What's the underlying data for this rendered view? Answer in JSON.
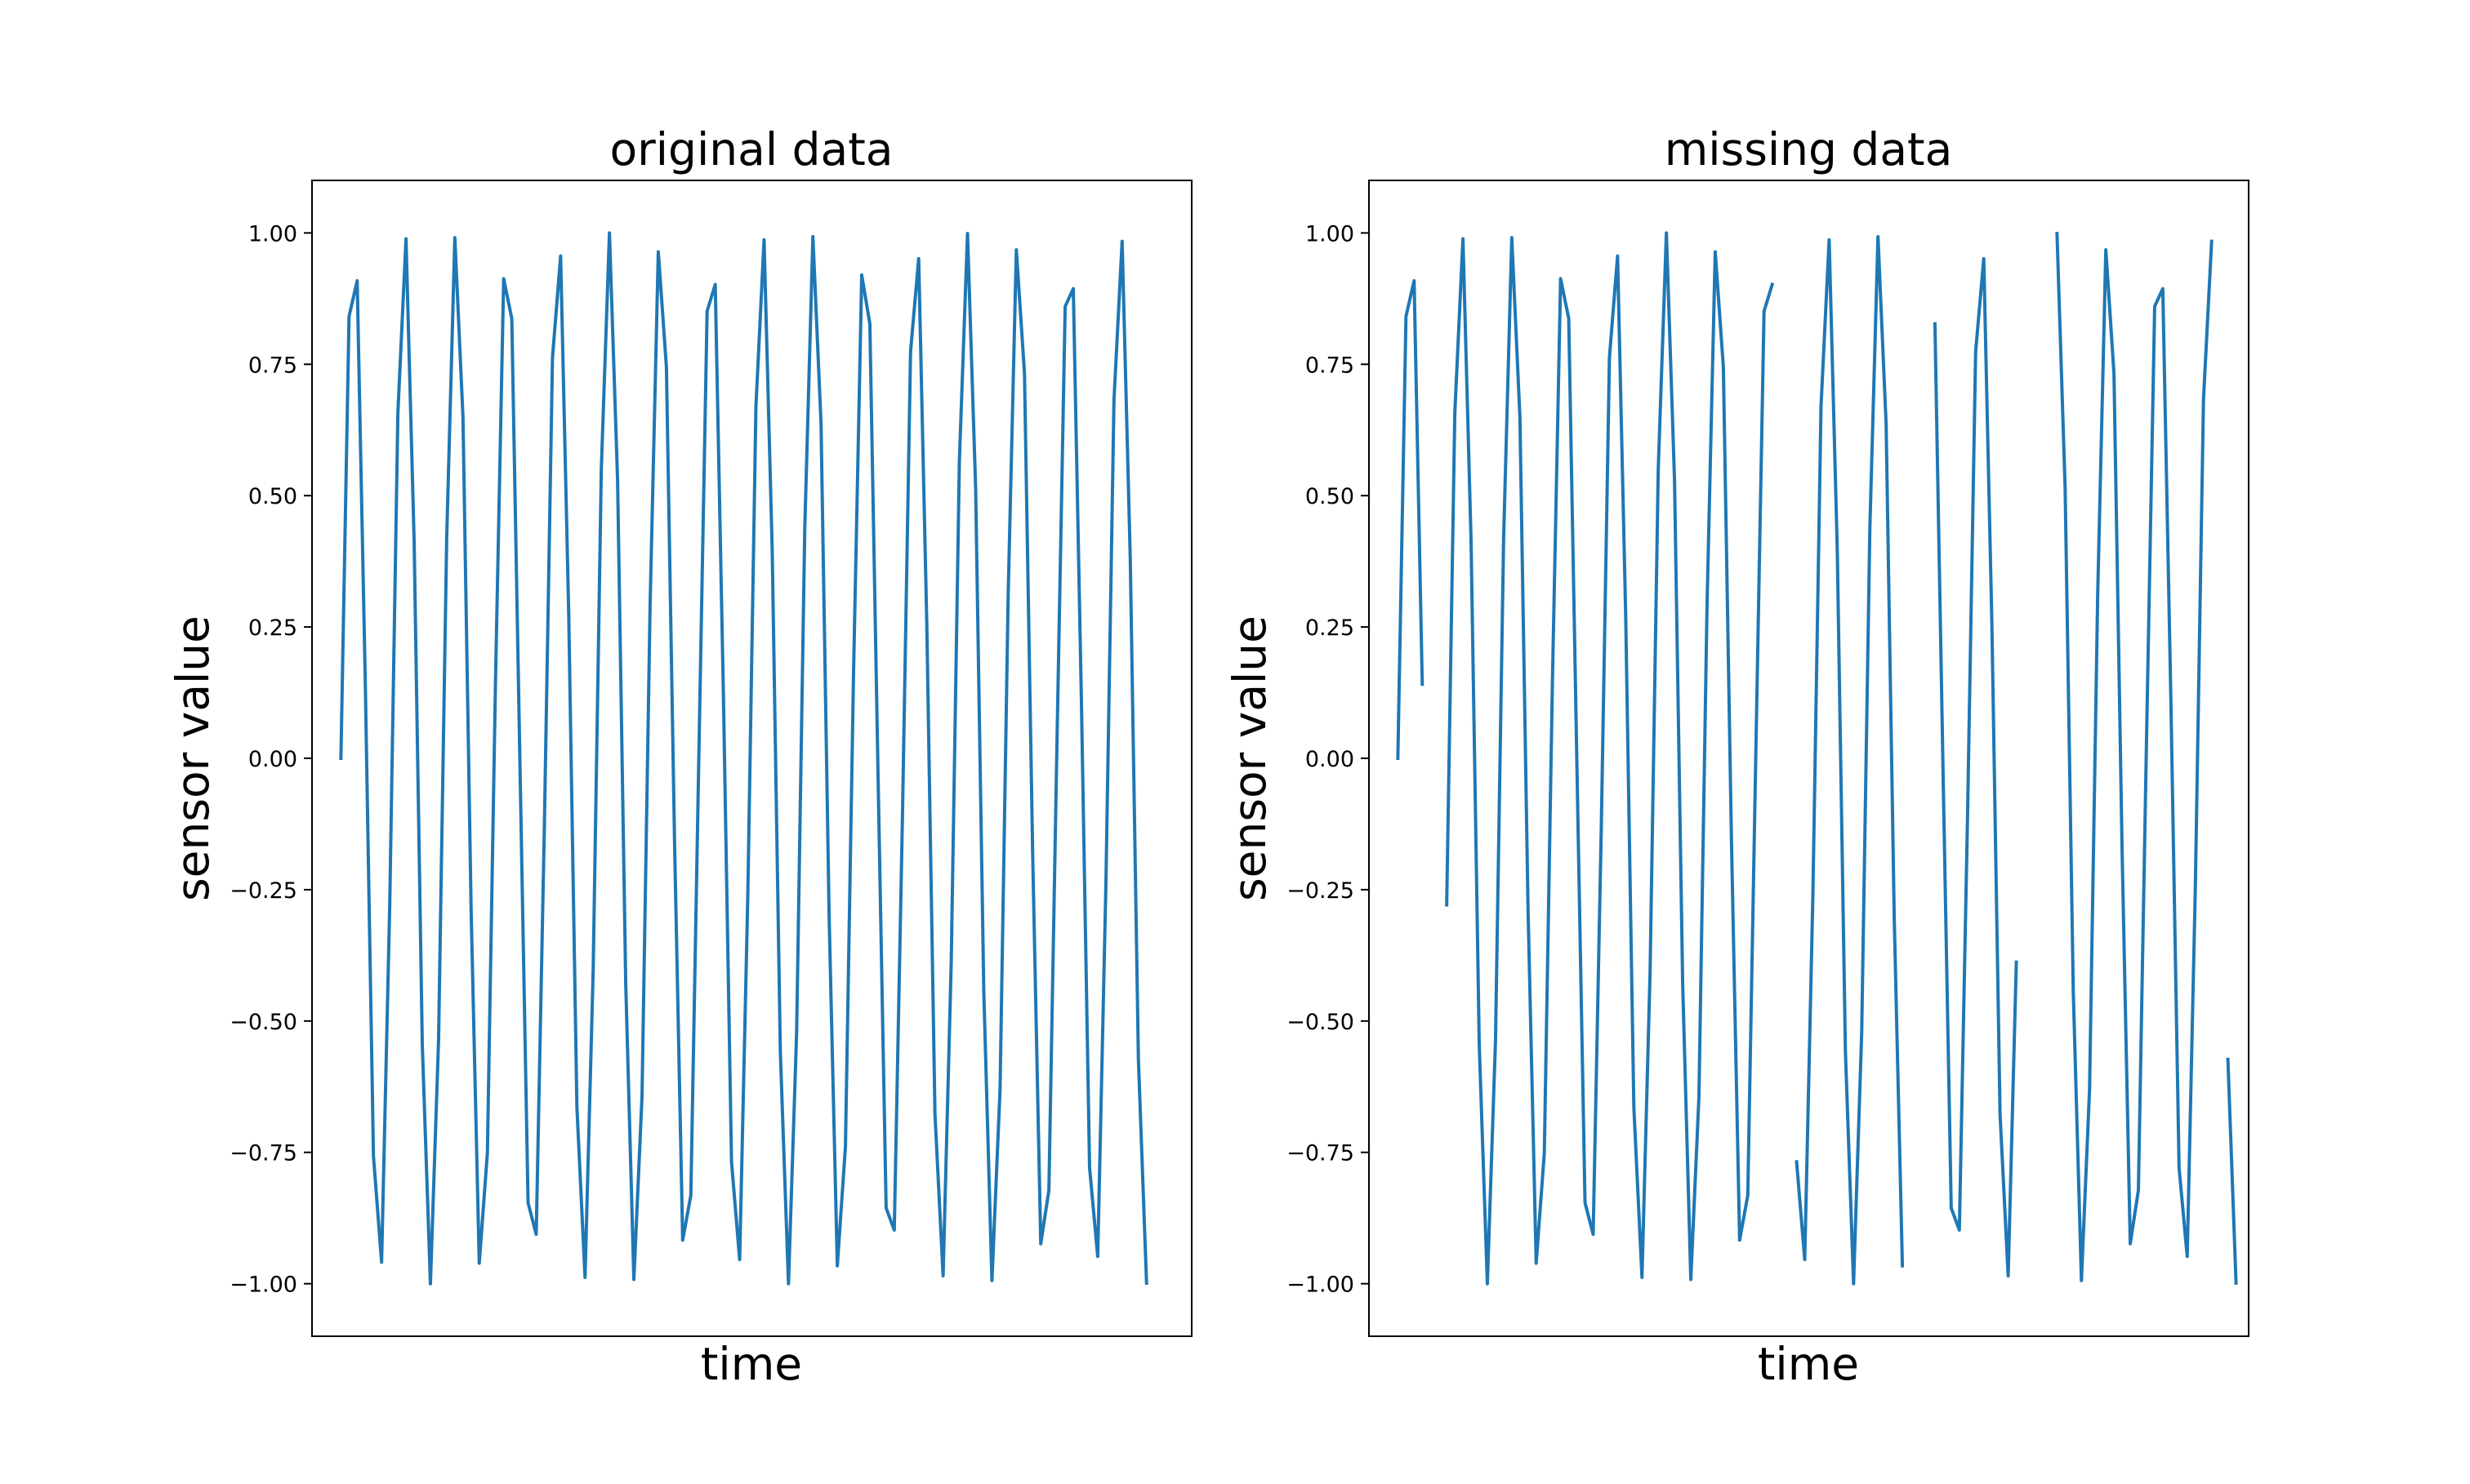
{
  "chart_data": [
    {
      "type": "line",
      "title": "original data",
      "xlabel": "time",
      "ylabel": "sensor value",
      "ylim": [
        -1.1,
        1.1
      ],
      "xlim": [
        -3.55,
        104.55
      ],
      "yticks": [
        1.0,
        0.75,
        0.5,
        0.25,
        0.0,
        -0.25,
        -0.5,
        -0.75,
        -1.0
      ],
      "ytick_labels": [
        "1.00",
        "0.75",
        "0.50",
        "0.25",
        "0.00",
        "−0.25",
        "−0.50",
        "−0.75",
        "−1.00"
      ],
      "show_xticks": false,
      "grid": false,
      "color": "#1f77b4",
      "y": [
        0.0,
        0.841,
        0.909,
        0.141,
        -0.757,
        -0.959,
        -0.279,
        0.657,
        0.989,
        0.412,
        -0.544,
        -1.0,
        -0.537,
        0.42,
        0.991,
        0.65,
        -0.288,
        -0.961,
        -0.751,
        0.15,
        0.913,
        0.837,
        -0.009,
        -0.846,
        -0.906,
        -0.132,
        0.763,
        0.956,
        0.271,
        -0.664,
        -0.988,
        -0.404,
        0.551,
        1.0,
        0.529,
        -0.428,
        -0.992,
        -0.644,
        0.296,
        0.964,
        0.745,
        -0.159,
        -0.917,
        -0.832,
        0.018,
        0.851,
        0.902,
        0.124,
        -0.768,
        -0.954,
        -0.262,
        0.67,
        0.987,
        0.396,
        -0.559,
        -1.0,
        -0.522,
        0.436,
        0.993,
        0.637,
        -0.305,
        -0.966,
        -0.739,
        0.167,
        0.92,
        0.827,
        -0.027,
        -0.856,
        -0.898,
        -0.115,
        0.774,
        0.951,
        0.254,
        -0.677,
        -0.985,
        -0.388,
        0.566,
        0.999,
        0.514,
        -0.444,
        -0.994,
        -0.63,
        0.313,
        0.968,
        0.733,
        -0.176,
        -0.924,
        -0.822,
        0.035,
        0.86,
        0.894,
        0.106,
        -0.779,
        -0.948,
        -0.245,
        0.683,
        0.984,
        0.38,
        -0.573,
        -0.999
      ]
    },
    {
      "type": "line",
      "title": "missing data",
      "xlabel": "time",
      "ylabel": "sensor value",
      "ylim": [
        -1.1,
        1.1
      ],
      "xlim": [
        -3.55,
        104.55
      ],
      "yticks": [
        1.0,
        0.75,
        0.5,
        0.25,
        0.0,
        -0.25,
        -0.5,
        -0.75,
        -1.0
      ],
      "ytick_labels": [
        "1.00",
        "0.75",
        "0.50",
        "0.25",
        "0.00",
        "−0.25",
        "−0.50",
        "−0.75",
        "−1.00"
      ],
      "show_xticks": false,
      "grid": false,
      "color": "#1f77b4",
      "y": [
        0.0,
        0.841,
        0.909,
        0.141,
        null,
        null,
        -0.279,
        0.657,
        0.989,
        0.412,
        -0.544,
        -1.0,
        -0.537,
        0.42,
        0.991,
        0.65,
        -0.288,
        -0.961,
        -0.751,
        0.15,
        0.913,
        0.837,
        -0.009,
        -0.846,
        -0.906,
        -0.132,
        0.763,
        0.956,
        0.271,
        -0.664,
        -0.988,
        -0.404,
        0.551,
        1.0,
        0.529,
        -0.428,
        -0.992,
        -0.644,
        0.296,
        0.964,
        0.745,
        -0.159,
        -0.917,
        -0.832,
        0.018,
        0.851,
        0.902,
        null,
        null,
        -0.768,
        -0.954,
        -0.262,
        0.67,
        0.987,
        0.396,
        -0.559,
        -1.0,
        -0.522,
        0.436,
        0.993,
        0.637,
        -0.305,
        -0.966,
        null,
        null,
        null,
        0.827,
        -0.027,
        -0.856,
        -0.898,
        -0.115,
        0.774,
        0.951,
        0.254,
        -0.677,
        -0.985,
        -0.388,
        null,
        null,
        null,
        null,
        0.999,
        0.514,
        -0.444,
        -0.994,
        -0.63,
        0.313,
        0.968,
        0.733,
        -0.176,
        -0.924,
        -0.822,
        0.035,
        0.86,
        0.894,
        0.106,
        -0.779,
        -0.948,
        -0.245,
        0.683,
        0.984,
        null,
        -0.573,
        -0.999
      ]
    }
  ]
}
